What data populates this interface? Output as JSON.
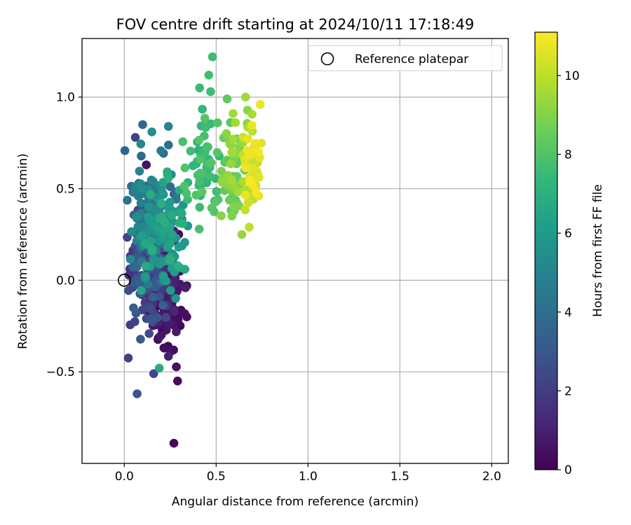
{
  "chart_data": {
    "type": "scatter",
    "title": "FOV centre drift starting at 2024/10/11 17:18:49",
    "xlabel": "Angular distance from reference (arcmin)",
    "ylabel": "Rotation from reference (arcmin)",
    "xlim": [
      -0.23,
      2.09
    ],
    "ylim": [
      -1.0,
      1.32
    ],
    "x_ticks": [
      0.0,
      0.5,
      1.0,
      1.5,
      2.0
    ],
    "x_tick_labels": [
      "0.0",
      "0.5",
      "1.0",
      "1.5",
      "2.0"
    ],
    "y_ticks": [
      -0.5,
      0.0,
      0.5,
      1.0
    ],
    "y_tick_labels": [
      "−0.5",
      "0.0",
      "0.5",
      "1.0"
    ],
    "grid": true,
    "legend": {
      "placement": "top-right",
      "entries": [
        "Reference platepar"
      ]
    },
    "reference_point": {
      "x": 0.0,
      "y": 0.0,
      "marker": "open-circle"
    },
    "colorbar": {
      "label": "Hours from first FF file",
      "range": [
        0,
        11.1
      ],
      "ticks": [
        0,
        2,
        4,
        6,
        8,
        10
      ],
      "tick_labels": [
        "0",
        "2",
        "4",
        "6",
        "8",
        "10"
      ],
      "colormap": "viridis"
    },
    "colormap_stops": [
      "#440154",
      "#482878",
      "#3e4a89",
      "#31688e",
      "#26828e",
      "#1f9e89",
      "#35b779",
      "#6ece58",
      "#b5de2b",
      "#fde725"
    ],
    "point_clusters": [
      {
        "hours": [
          0.0,
          1.0
        ],
        "count": 120,
        "x": [
          0.1,
          0.34
        ],
        "y": [
          -0.55,
          0.3
        ]
      },
      {
        "hours": [
          1.0,
          2.0
        ],
        "count": 90,
        "x": [
          0.0,
          0.3
        ],
        "y": [
          -0.3,
          0.55
        ]
      },
      {
        "hours": [
          2.0,
          3.5
        ],
        "count": 110,
        "x": [
          0.0,
          0.24
        ],
        "y": [
          -0.45,
          0.65
        ]
      },
      {
        "hours": [
          3.5,
          5.5
        ],
        "count": 110,
        "x": [
          0.0,
          0.3
        ],
        "y": [
          -0.1,
          0.85
        ]
      },
      {
        "hours": [
          5.5,
          7.0
        ],
        "count": 90,
        "x": [
          0.08,
          0.36
        ],
        "y": [
          -0.2,
          0.72
        ]
      },
      {
        "hours": [
          7.0,
          8.2
        ],
        "count": 60,
        "x": [
          0.3,
          0.55
        ],
        "y": [
          0.15,
          1.05
        ]
      },
      {
        "hours": [
          8.2,
          9.6
        ],
        "count": 60,
        "x": [
          0.5,
          0.68
        ],
        "y": [
          0.25,
          1.0
        ]
      },
      {
        "hours": [
          9.6,
          11.1
        ],
        "count": 60,
        "x": [
          0.64,
          0.75
        ],
        "y": [
          0.3,
          0.96
        ]
      }
    ],
    "points": [
      {
        "x": 0.48,
        "y": 1.22,
        "hours": 7.6
      },
      {
        "x": 0.46,
        "y": 1.12,
        "hours": 7.7
      },
      {
        "x": 0.41,
        "y": 1.05,
        "hours": 7.5
      },
      {
        "x": 0.47,
        "y": 1.03,
        "hours": 7.6
      },
      {
        "x": 0.56,
        "y": 0.99,
        "hours": 8.3
      },
      {
        "x": 0.66,
        "y": 1.0,
        "hours": 9.5
      },
      {
        "x": 0.74,
        "y": 0.96,
        "hours": 10.8
      },
      {
        "x": 0.1,
        "y": 0.85,
        "hours": 3.6
      },
      {
        "x": 0.24,
        "y": 0.84,
        "hours": 5.0
      },
      {
        "x": 0.15,
        "y": 0.81,
        "hours": 5.5
      },
      {
        "x": 0.06,
        "y": 0.78,
        "hours": 2.2
      },
      {
        "x": 0.12,
        "y": 0.63,
        "hours": 0.5
      },
      {
        "x": 0.16,
        "y": -0.51,
        "hours": 2.3
      },
      {
        "x": 0.19,
        "y": -0.48,
        "hours": 6.8
      },
      {
        "x": 0.29,
        "y": -0.55,
        "hours": 0.3
      },
      {
        "x": 0.07,
        "y": -0.62,
        "hours": 3.0
      },
      {
        "x": 0.27,
        "y": -0.89,
        "hours": 0.2
      },
      {
        "x": 0.34,
        "y": -0.03,
        "hours": 0.3
      },
      {
        "x": 0.34,
        "y": -0.2,
        "hours": 0.4
      },
      {
        "x": 0.33,
        "y": 0.06,
        "hours": 6.8
      },
      {
        "x": 0.64,
        "y": 0.25,
        "hours": 9.3
      },
      {
        "x": 0.68,
        "y": 0.29,
        "hours": 10.0
      }
    ]
  }
}
